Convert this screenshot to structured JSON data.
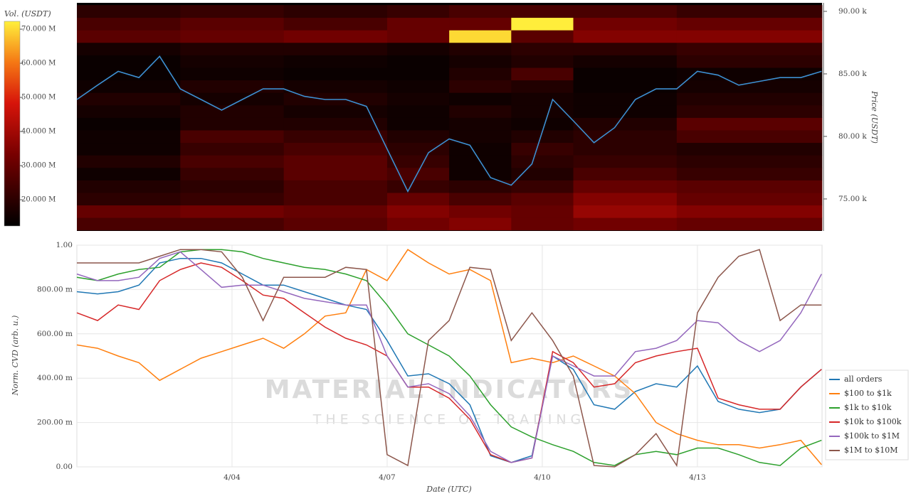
{
  "chart_data": [
    {
      "type": "heatmap",
      "colorbar_label": "Vol. (USDT)",
      "clim": [
        12300000,
        72300000
      ],
      "cticks": [
        {
          "value": 20000000,
          "label": "20.000 M"
        },
        {
          "value": 30000000,
          "label": "30.000 M"
        },
        {
          "value": 40000000,
          "label": "40.000 M"
        },
        {
          "value": 50000000,
          "label": "50.000 M"
        },
        {
          "value": 60000000,
          "label": "60.000 M"
        },
        {
          "value": 70000000,
          "label": "70.000 M"
        }
      ],
      "xlim": [
        1,
        15.41
      ],
      "ylim": [
        72440,
        90680
      ],
      "ylabel": "Price (USDT)",
      "yticks": [
        {
          "value": 75000,
          "label": "75.00 k"
        },
        {
          "value": 80000,
          "label": "80.00 k"
        },
        {
          "value": 85000,
          "label": "85.00 k"
        },
        {
          "value": 90000,
          "label": "90.00 k"
        }
      ],
      "x_edges": [
        1,
        3,
        5,
        7,
        8.2,
        9.4,
        10.6,
        12.6,
        15.41
      ],
      "y_edges": [
        72500,
        73500,
        74500,
        75500,
        76500,
        77500,
        78500,
        79500,
        80500,
        81500,
        82500,
        83500,
        84500,
        85500,
        86500,
        87500,
        88500,
        89500,
        90500
      ],
      "z": [
        [
          25000000.0,
          25000000.0,
          28000000.0,
          32000000.0,
          35000000.0,
          30000000.0,
          32000000.0,
          30000000.0
        ],
        [
          30000000.0,
          32000000.0,
          30000000.0,
          35000000.0,
          32000000.0,
          30000000.0,
          38000000.0,
          35000000.0
        ],
        [
          20000000.0,
          22000000.0,
          25000000.0,
          30000000.0,
          25000000.0,
          28000000.0,
          35000000.0,
          30000000.0
        ],
        [
          18000000.0,
          20000000.0,
          25000000.0,
          22000000.0,
          20000000.0,
          22000000.0,
          30000000.0,
          28000000.0
        ],
        [
          15000000.0,
          22000000.0,
          28000000.0,
          25000000.0,
          15000000.0,
          18000000.0,
          25000000.0,
          22000000.0
        ],
        [
          18000000.0,
          25000000.0,
          28000000.0,
          22000000.0,
          15000000.0,
          20000000.0,
          22000000.0,
          20000000.0
        ],
        [
          15000000.0,
          22000000.0,
          25000000.0,
          20000000.0,
          15000000.0,
          22000000.0,
          20000000.0,
          18000000.0
        ],
        [
          15000000.0,
          25000000.0,
          22000000.0,
          18000000.0,
          16000000.0,
          18000000.0,
          20000000.0,
          25000000.0
        ],
        [
          14000000.0,
          18000000.0,
          18000000.0,
          15000000.0,
          16000000.0,
          15000000.0,
          18000000.0,
          28000000.0
        ],
        [
          16000000.0,
          18000000.0,
          16000000.0,
          15000000.0,
          18000000.0,
          16000000.0,
          15000000.0,
          20000000.0
        ],
        [
          18000000.0,
          16000000.0,
          18000000.0,
          16000000.0,
          15000000.0,
          16000000.0,
          15000000.0,
          18000000.0
        ],
        [
          15000000.0,
          18000000.0,
          16000000.0,
          15000000.0,
          20000000.0,
          18000000.0,
          14000000.0,
          16000000.0
        ],
        [
          14000000.0,
          15000000.0,
          14000000.0,
          14000000.0,
          18000000.0,
          25000000.0,
          14000000.0,
          15000000.0
        ],
        [
          14000000.0,
          16000000.0,
          15000000.0,
          14000000.0,
          16000000.0,
          18000000.0,
          16000000.0,
          20000000.0
        ],
        [
          16000000.0,
          18000000.0,
          18000000.0,
          16000000.0,
          18000000.0,
          20000000.0,
          20000000.0,
          22000000.0
        ],
        [
          28000000.0,
          30000000.0,
          32000000.0,
          30000000.0,
          70000000.0,
          28000000.0,
          35000000.0,
          35000000.0
        ],
        [
          25000000.0,
          28000000.0,
          25000000.0,
          30000000.0,
          30000000.0,
          72000000.0,
          32000000.0,
          30000000.0
        ],
        [
          20000000.0,
          22000000.0,
          20000000.0,
          22000000.0,
          25000000.0,
          25000000.0,
          25000000.0,
          22000000.0
        ]
      ],
      "line": {
        "color": "#3d8fd1",
        "x": [
          1.0,
          1.4,
          1.8,
          2.2,
          2.6,
          3.0,
          3.4,
          3.8,
          4.2,
          4.6,
          5.0,
          5.4,
          5.8,
          6.2,
          6.6,
          7.0,
          7.4,
          7.8,
          8.2,
          8.6,
          9.0,
          9.4,
          9.8,
          10.2,
          10.6,
          11.0,
          11.4,
          11.8,
          12.2,
          12.6,
          13.0,
          13.4,
          13.8,
          14.2,
          14.6,
          15.0,
          15.4
        ],
        "values": [
          82950,
          84100,
          85200,
          84700,
          86400,
          83800,
          82950,
          82100,
          82950,
          83800,
          83800,
          83200,
          82950,
          82950,
          82400,
          79000,
          75600,
          78700,
          79800,
          79300,
          76700,
          76100,
          77800,
          82950,
          81250,
          79500,
          80700,
          82950,
          83800,
          83800,
          85200,
          84900,
          84100,
          84400,
          84700,
          84700,
          85200
        ]
      }
    },
    {
      "type": "line",
      "xlabel": "Date (UTC)",
      "ylabel": "Norm. CVD (arb. u.)",
      "xlim": [
        1,
        15.41
      ],
      "xticks": [
        {
          "value": 4,
          "label": "4/04"
        },
        {
          "value": 7,
          "label": "4/07"
        },
        {
          "value": 10,
          "label": "4/10"
        },
        {
          "value": 13,
          "label": "4/13"
        }
      ],
      "ylim": [
        0,
        1
      ],
      "yticks": [
        {
          "value": 0,
          "label": "0.00"
        },
        {
          "value": 0.2,
          "label": "200.00 m"
        },
        {
          "value": 0.4,
          "label": "400.00 m"
        },
        {
          "value": 0.6,
          "label": "600.00 m"
        },
        {
          "value": 0.8,
          "label": "800.00 m"
        },
        {
          "value": 1,
          "label": "1.00"
        }
      ],
      "grid": true,
      "legend": "lower right",
      "x": [
        1.0,
        1.4,
        1.8,
        2.2,
        2.6,
        3.0,
        3.4,
        3.8,
        4.2,
        4.6,
        5.0,
        5.4,
        5.8,
        6.2,
        6.6,
        7.0,
        7.4,
        7.8,
        8.2,
        8.6,
        9.0,
        9.4,
        9.8,
        10.2,
        10.6,
        11.0,
        11.4,
        11.8,
        12.2,
        12.6,
        13.0,
        13.4,
        13.8,
        14.2,
        14.6,
        15.0,
        15.4
      ],
      "series": [
        {
          "name": "all orders",
          "color": "#1f77b4",
          "values": [
            0.79,
            0.78,
            0.79,
            0.82,
            0.92,
            0.94,
            0.94,
            0.92,
            0.87,
            0.82,
            0.82,
            0.79,
            0.76,
            0.73,
            0.71,
            0.57,
            0.41,
            0.42,
            0.375,
            0.28,
            0.05,
            0.02,
            0.05,
            0.5,
            0.44,
            0.28,
            0.26,
            0.34,
            0.375,
            0.36,
            0.455,
            0.295,
            0.26,
            0.245,
            0.26,
            0.36,
            0.44
          ]
        },
        {
          "name": "$100 to $1k",
          "color": "#ff7f0e",
          "values": [
            0.55,
            0.535,
            0.5,
            0.47,
            0.39,
            0.44,
            0.49,
            0.52,
            0.55,
            0.58,
            0.535,
            0.6,
            0.68,
            0.695,
            0.89,
            0.84,
            0.98,
            0.92,
            0.87,
            0.89,
            0.84,
            0.47,
            0.49,
            0.47,
            0.5,
            0.455,
            0.41,
            0.33,
            0.2,
            0.15,
            0.12,
            0.1,
            0.1,
            0.085,
            0.1,
            0.12,
            0.01
          ]
        },
        {
          "name": "$1k to $10k",
          "color": "#2ca02c",
          "values": [
            0.855,
            0.84,
            0.87,
            0.89,
            0.9,
            0.97,
            0.98,
            0.98,
            0.97,
            0.94,
            0.92,
            0.9,
            0.89,
            0.87,
            0.84,
            0.73,
            0.6,
            0.55,
            0.5,
            0.41,
            0.28,
            0.18,
            0.135,
            0.1,
            0.07,
            0.02,
            0.006,
            0.055,
            0.07,
            0.055,
            0.085,
            0.085,
            0.055,
            0.02,
            0.006,
            0.085,
            0.12
          ]
        },
        {
          "name": "$10k to $100k",
          "color": "#d62728",
          "values": [
            0.695,
            0.66,
            0.73,
            0.71,
            0.84,
            0.89,
            0.92,
            0.9,
            0.84,
            0.775,
            0.76,
            0.695,
            0.63,
            0.58,
            0.55,
            0.5,
            0.36,
            0.36,
            0.31,
            0.215,
            0.055,
            0.02,
            0.04,
            0.52,
            0.47,
            0.36,
            0.375,
            0.47,
            0.5,
            0.52,
            0.535,
            0.31,
            0.28,
            0.26,
            0.26,
            0.36,
            0.44
          ]
        },
        {
          "name": "$100k to $1M",
          "color": "#9467bd",
          "values": [
            0.87,
            0.84,
            0.84,
            0.855,
            0.94,
            0.97,
            0.89,
            0.81,
            0.82,
            0.82,
            0.79,
            0.76,
            0.745,
            0.73,
            0.73,
            0.5,
            0.36,
            0.375,
            0.33,
            0.23,
            0.07,
            0.02,
            0.04,
            0.5,
            0.455,
            0.41,
            0.41,
            0.52,
            0.535,
            0.57,
            0.66,
            0.65,
            0.57,
            0.52,
            0.57,
            0.695,
            0.87
          ]
        },
        {
          "name": "$1M to $10M",
          "color": "#8c564b",
          "values": [
            0.92,
            0.92,
            0.92,
            0.92,
            0.95,
            0.98,
            0.98,
            0.97,
            0.855,
            0.66,
            0.855,
            0.855,
            0.855,
            0.9,
            0.89,
            0.055,
            0.006,
            0.57,
            0.66,
            0.9,
            0.89,
            0.57,
            0.695,
            0.57,
            0.41,
            0.006,
            0,
            0.055,
            0.15,
            0.006,
            0.695,
            0.855,
            0.95,
            0.98,
            0.66,
            0.73,
            0.73
          ]
        }
      ]
    }
  ],
  "watermark": {
    "title": "MATERIAL INDICATORS",
    "subtitle": "THE SCIENCE OF TRADING"
  }
}
